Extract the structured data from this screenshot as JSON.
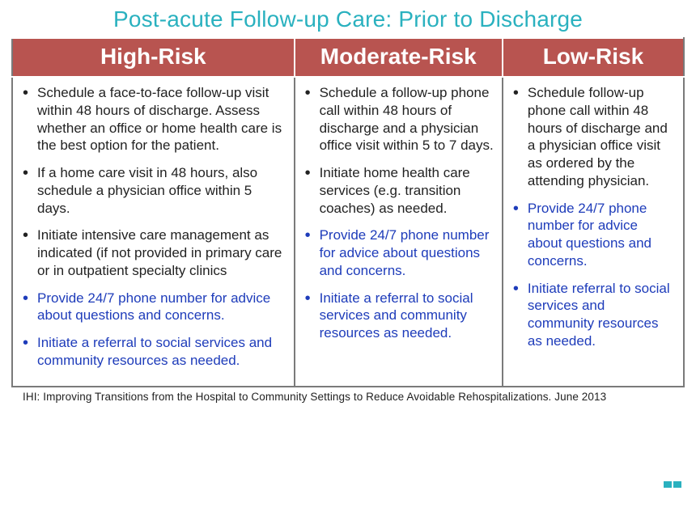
{
  "colors": {
    "title": "#2ab1bf",
    "header_bg": "#b85450",
    "header_text": "#ffffff",
    "body_text": "#222222",
    "blue_bullet": "#1e3cba",
    "border": "#7a7a7a"
  },
  "fonts": {
    "title_size": 28,
    "header_size": 28,
    "bullet_size": 17,
    "citation_size": 13.5
  },
  "title": "Post-acute Follow-up Care: Prior to Discharge",
  "columns": [
    {
      "header": "High-Risk",
      "bullets": [
        {
          "text": "Schedule a face-to-face follow-up visit within 48 hours of discharge. Assess whether an office or home health care is the best option for the patient.",
          "blue": false
        },
        {
          "text": "If a home care visit in 48 hours, also schedule a physician office within 5 days.",
          "blue": false
        },
        {
          "text": "Initiate intensive care management as indicated (if not provided in primary care or in outpatient specialty clinics",
          "blue": false
        },
        {
          "text": "Provide 24/7 phone number for advice about questions and concerns.",
          "blue": true
        },
        {
          "text": "Initiate a referral to social services and community resources as needed.",
          "blue": true
        }
      ]
    },
    {
      "header": "Moderate-Risk",
      "bullets": [
        {
          "text": "Schedule a follow-up phone call within 48 hours of discharge and a physician office visit within 5 to 7 days.",
          "blue": false
        },
        {
          "text": "Initiate home health care services (e.g. transition coaches) as needed.",
          "blue": false
        },
        {
          "text": "Provide 24/7 phone number for advice about questions and concerns.",
          "blue": true
        },
        {
          "text": "Initiate a referral to social services and community resources as needed.",
          "blue": true
        }
      ]
    },
    {
      "header": "Low-Risk",
      "bullets": [
        {
          "text": "Schedule follow-up phone call within 48 hours of discharge and a physician office visit as ordered by the attending physician.",
          "blue": false
        },
        {
          "text": "Provide 24/7 phone number for advice about questions and concerns.",
          "blue": true
        },
        {
          "text": "Initiate referral to social services and community resources as needed.",
          "blue": true
        }
      ]
    }
  ],
  "citation": "IHI: Improving Transitions from the Hospital to Community Settings to Reduce Avoidable Rehospitalizations. June 2013"
}
